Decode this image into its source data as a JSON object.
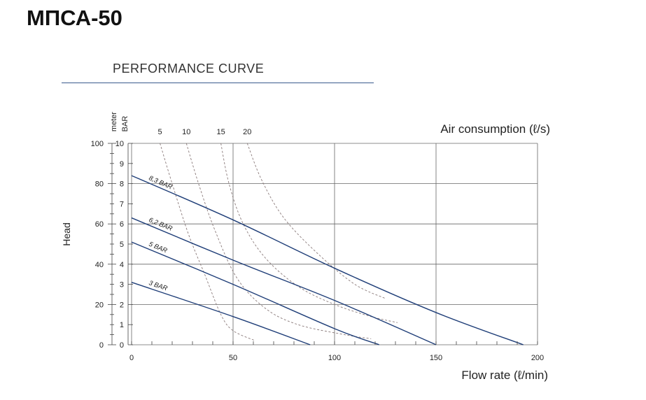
{
  "title": "МПСА-50",
  "chart_data": {
    "type": "line",
    "title": "PERFORMANCE CURVE",
    "xlabel": "Flow rate (ℓ/min)",
    "xlim": [
      0,
      200
    ],
    "xticks": [
      0,
      50,
      100,
      150,
      200
    ],
    "ylabel": "Head",
    "ylim_meter": [
      0,
      100
    ],
    "yticks_meter": [
      0,
      20,
      40,
      60,
      80,
      100
    ],
    "ylabel_meter": "meter",
    "ylabel_bar": "BAR",
    "yticks_bar": [
      0,
      1,
      2,
      3,
      4,
      5,
      6,
      7,
      8,
      9,
      10
    ],
    "air_label": "Air consumption (ℓ/s)",
    "air_ticks": [
      {
        "label": "5",
        "x": 14
      },
      {
        "label": "10",
        "x": 27
      },
      {
        "label": "15",
        "x": 44
      },
      {
        "label": "20",
        "x": 57
      }
    ],
    "grid": true,
    "series": [
      {
        "name": "8,3 BAR",
        "points": [
          [
            0,
            84
          ],
          [
            50,
            62
          ],
          [
            100,
            38
          ],
          [
            150,
            16
          ],
          [
            193,
            0
          ]
        ]
      },
      {
        "name": "6,2 BAR",
        "points": [
          [
            0,
            63
          ],
          [
            50,
            42
          ],
          [
            100,
            22
          ],
          [
            150,
            0
          ]
        ]
      },
      {
        "name": "5 BAR",
        "points": [
          [
            0,
            51
          ],
          [
            50,
            30
          ],
          [
            100,
            8
          ],
          [
            122,
            0
          ]
        ]
      },
      {
        "name": "3 BAR",
        "points": [
          [
            0,
            31
          ],
          [
            50,
            14
          ],
          [
            88,
            0
          ]
        ]
      }
    ],
    "air_curves": [
      {
        "label": "5",
        "points": [
          [
            14,
            100
          ],
          [
            20,
            80
          ],
          [
            28,
            55
          ],
          [
            36,
            35
          ],
          [
            44,
            15
          ],
          [
            50,
            7
          ],
          [
            61,
            2
          ]
        ]
      },
      {
        "label": "10",
        "points": [
          [
            27,
            100
          ],
          [
            33,
            80
          ],
          [
            41,
            57
          ],
          [
            52,
            33
          ],
          [
            66,
            18
          ],
          [
            82,
            10
          ],
          [
            105,
            5
          ],
          [
            118,
            3
          ]
        ]
      },
      {
        "label": "15",
        "points": [
          [
            44,
            100
          ],
          [
            48,
            80
          ],
          [
            55,
            60
          ],
          [
            66,
            43
          ],
          [
            82,
            29
          ],
          [
            100,
            20
          ],
          [
            118,
            14
          ],
          [
            131,
            11
          ]
        ]
      },
      {
        "label": "20",
        "points": [
          [
            57,
            100
          ],
          [
            64,
            82
          ],
          [
            75,
            63
          ],
          [
            92,
            45
          ],
          [
            110,
            30
          ],
          [
            125,
            23
          ]
        ]
      }
    ]
  }
}
